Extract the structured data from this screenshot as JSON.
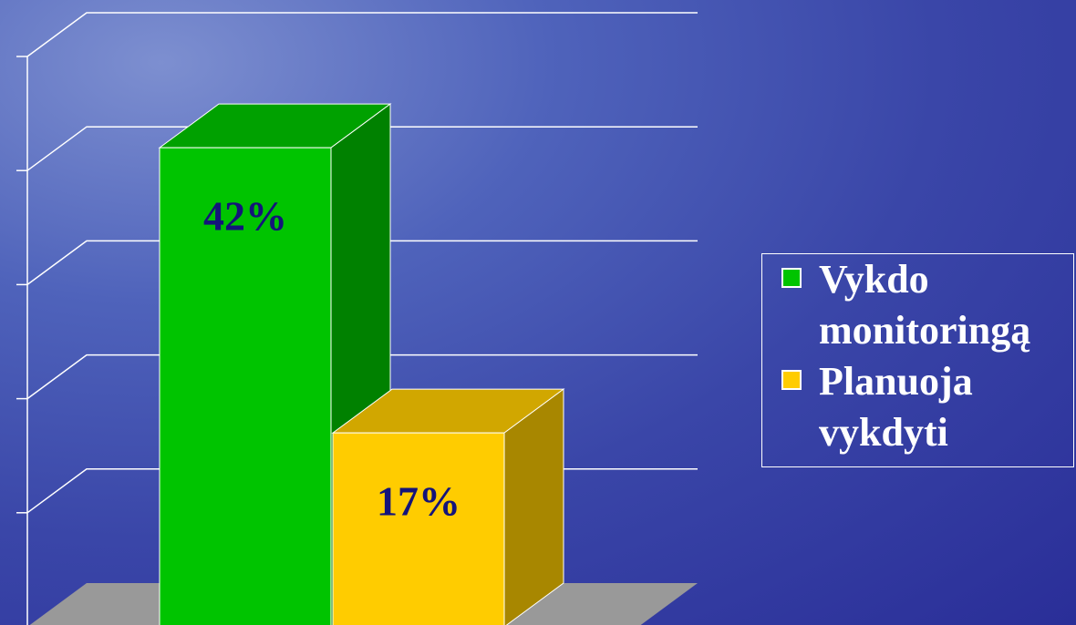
{
  "chart_data": {
    "type": "bar3d",
    "categories": [
      null
    ],
    "series": [
      {
        "name": "Vykdo monitoringą",
        "color": "#00c400",
        "values": [
          42
        ],
        "value_labels": [
          "42%"
        ]
      },
      {
        "name": "Planuoja vykdyti",
        "color": "#ffcc00",
        "values": [
          17
        ],
        "value_labels": [
          "17%"
        ]
      }
    ],
    "ylim": [
      0,
      50
    ],
    "yticks": [
      0,
      10,
      20,
      30,
      40,
      50
    ],
    "grid": true,
    "legend": "right"
  }
}
